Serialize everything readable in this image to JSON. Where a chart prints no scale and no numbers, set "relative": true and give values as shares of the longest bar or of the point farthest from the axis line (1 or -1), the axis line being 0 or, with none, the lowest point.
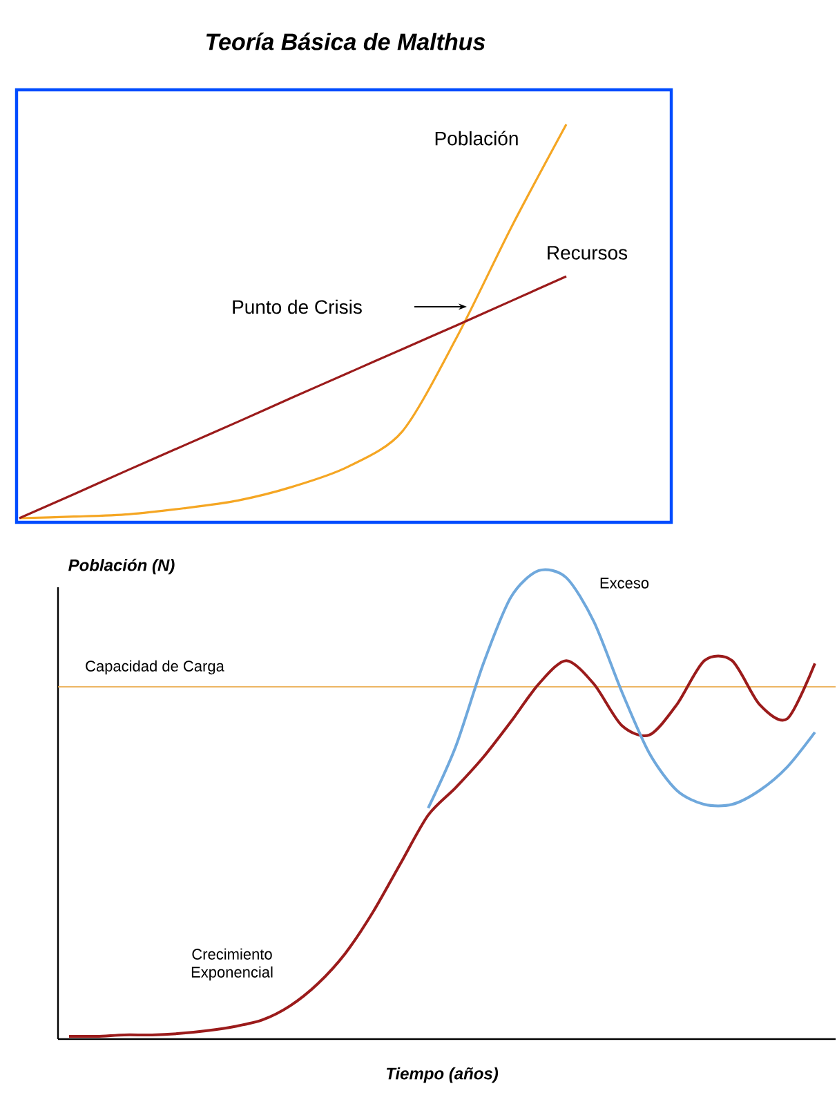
{
  "chart_data": [
    {
      "type": "line",
      "title": "Teoría Básica de Malthus",
      "relative": true,
      "annotations": [
        "Punto de Crisis"
      ],
      "categories": [
        null,
        null,
        null,
        null,
        null,
        null,
        null,
        null,
        null,
        null,
        null
      ],
      "series": [
        {
          "name": "Población",
          "color": "#f5a623",
          "values": [
            0,
            0.004,
            0.01,
            0.025,
            0.045,
            0.08,
            0.13,
            0.22,
            0.46,
            0.74,
            1
          ]
        },
        {
          "name": "Recursos",
          "color": "#9b1b1b",
          "values": [
            0,
            0.061,
            0.123,
            0.184,
            0.245,
            0.307,
            0.368,
            0.429,
            0.49,
            0.552,
            0.614
          ]
        }
      ]
    },
    {
      "type": "line",
      "relative": true,
      "xlabel": "Tiempo (años)",
      "ylabel": "Población (N)",
      "annotations": [
        "Crecimiento Exponencial"
      ],
      "categories": [
        null,
        null,
        null,
        null,
        null,
        null,
        null,
        null,
        null,
        null,
        null,
        null,
        null,
        null,
        null,
        null,
        null,
        null,
        null,
        null,
        null,
        null,
        null,
        null,
        null,
        null,
        null,
        null
      ],
      "ref_lines": [
        {
          "axis": "y",
          "value": 0.752,
          "label": "Capacidad de Carga",
          "color": "#e8a33c"
        }
      ],
      "series": [
        {
          "color": "#9b1b1b",
          "values": [
            0.006,
            0.006,
            0.009,
            0.009,
            0.012,
            0.018,
            0.027,
            0.041,
            0.071,
            0.118,
            0.183,
            0.271,
            0.375,
            0.478,
            0.537,
            0.602,
            0.678,
            0.758,
            0.808,
            0.758,
            0.67,
            0.649,
            0.714,
            0.808,
            0.808,
            0.714,
            0.684,
            0.802
          ]
        },
        {
          "name": "Exceso",
          "color": "#6fa8dc",
          "values": [
            null,
            null,
            null,
            null,
            null,
            null,
            null,
            null,
            null,
            null,
            null,
            null,
            null,
            0.493,
            0.625,
            0.802,
            0.944,
            1,
            0.985,
            0.891,
            0.743,
            0.611,
            0.531,
            0.501,
            0.501,
            0.531,
            0.581,
            0.655
          ]
        }
      ]
    }
  ]
}
